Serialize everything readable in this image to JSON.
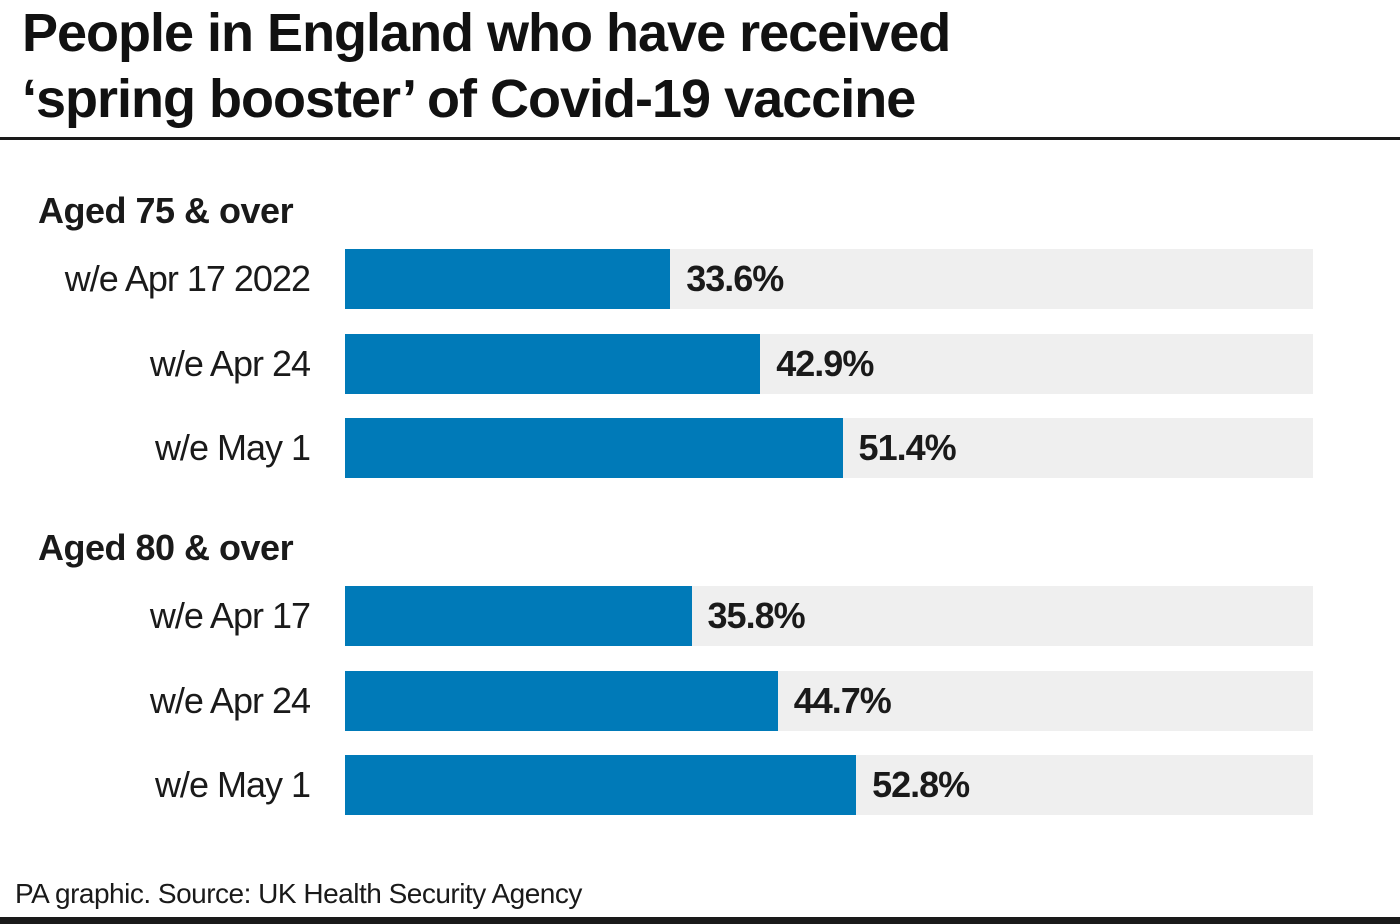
{
  "title_line1": "People in England who have received",
  "title_line2": "‘spring booster’ of Covid-19 vaccine",
  "footer": "PA graphic. Source: UK Health Security Agency",
  "colors": {
    "bar": "#007ab8",
    "track": "#efefef",
    "text": "#1a1a1a"
  },
  "chart_data": {
    "type": "bar",
    "orientation": "horizontal",
    "title": "People in England who have received ‘spring booster’ of Covid-19 vaccine",
    "xlim": [
      0,
      100
    ],
    "unit": "%",
    "groups": [
      {
        "name": "Aged 75 & over",
        "categories": [
          "w/e Apr 17 2022",
          "w/e Apr 24",
          "w/e May 1"
        ],
        "values": [
          33.6,
          42.9,
          51.4
        ],
        "labels": [
          "33.6%",
          "42.9%",
          "51.4%"
        ]
      },
      {
        "name": "Aged 80 & over",
        "categories": [
          "w/e Apr 17",
          "w/e Apr 24",
          "w/e May 1"
        ],
        "values": [
          35.8,
          44.7,
          52.8
        ],
        "labels": [
          "35.8%",
          "44.7%",
          "52.8%"
        ]
      }
    ]
  }
}
